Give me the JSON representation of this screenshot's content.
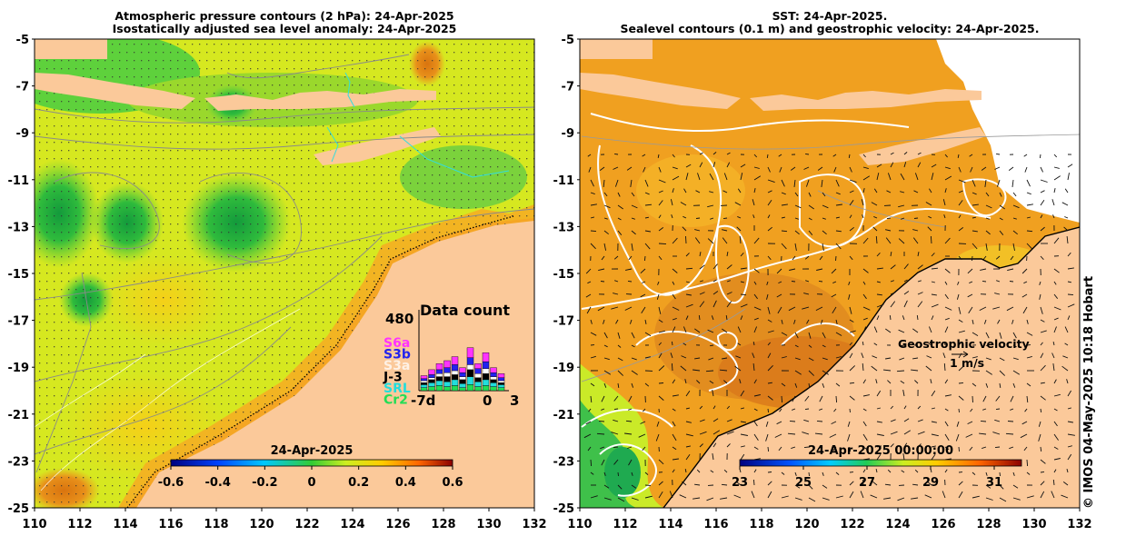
{
  "left_panel": {
    "title_line1": "Atmospheric pressure contours (2 hPa): 24-Apr-2025",
    "title_line2": "Isostatically adjusted sea level anomaly: 24-Apr-2025",
    "colorbar_title": "24-Apr-2025",
    "colorbar_ticks": [
      "-0.6",
      "-0.4",
      "-0.2",
      "0",
      "0.2",
      "0.4",
      "0.6"
    ]
  },
  "right_panel": {
    "title_line1": "SST: 24-Apr-2025.",
    "title_line2": "Sealevel contours (0.1 m) and geostrophic velocity: 24-Apr-2025.",
    "colorbar_title": "24-Apr-2025 00:00:00",
    "colorbar_ticks": [
      "23",
      "25",
      "27",
      "29",
      "31"
    ],
    "velocity_label": "Geostrophic velocity",
    "velocity_scale": "1 m/s"
  },
  "axes": {
    "y_ticks": [
      "-5",
      "-7",
      "-9",
      "-11",
      "-13",
      "-15",
      "-17",
      "-19",
      "-21",
      "-23",
      "-25"
    ],
    "x_ticks": [
      "110",
      "112",
      "114",
      "116",
      "118",
      "120",
      "122",
      "124",
      "126",
      "128",
      "130",
      "132"
    ]
  },
  "data_count": {
    "title": "Data count",
    "max_label": "480",
    "x_labels": [
      "-7d",
      "0",
      "3"
    ],
    "satellites": [
      {
        "name": "S6a",
        "color": "#ff33ff"
      },
      {
        "name": "S3b",
        "color": "#2222ee"
      },
      {
        "name": "S3a",
        "color": "#ffffff"
      },
      {
        "name": "J-3",
        "color": "#000000"
      },
      {
        "name": "SRL",
        "color": "#22dddd"
      },
      {
        "name": "Cr2",
        "color": "#22dd55"
      }
    ]
  },
  "colors": {
    "land": "#fbc99a",
    "sla_low": "#00007f",
    "sla_high": "#8b0000",
    "sst_ocean": "#f0a020"
  },
  "credit": "© IMOS 04-May-2025 10:18 Hobart"
}
